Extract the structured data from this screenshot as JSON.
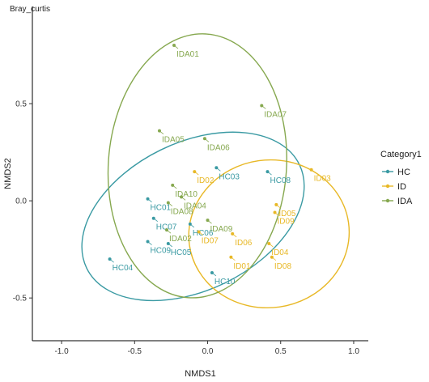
{
  "chart_data": {
    "type": "scatter",
    "title": "Bray_curtis",
    "xlabel": "NMDS1",
    "ylabel": "NMDS2",
    "xlim": [
      -1.2,
      1.1
    ],
    "ylim": [
      -0.72,
      1.0
    ],
    "x_ticks": [
      -1.0,
      -0.5,
      0.0,
      0.5,
      1.0
    ],
    "y_ticks": [
      -0.5,
      0.0,
      0.5
    ],
    "x_tick_labels": [
      "-1.0",
      "-0.5",
      "0.0",
      "0.5",
      "1.0"
    ],
    "y_tick_labels": [
      "-0.5",
      "0.0",
      "0.5"
    ],
    "grid": false,
    "legend": {
      "title": "Category1",
      "position": "right",
      "entries": [
        {
          "label": "HC",
          "color": "#3a9aa3"
        },
        {
          "label": "ID",
          "color": "#e8b826"
        },
        {
          "label": "IDA",
          "color": "#86a84f"
        }
      ]
    },
    "series": [
      {
        "name": "HC",
        "color": "#3a9aa3",
        "points": [
          {
            "label": "HC01",
            "x": -0.41,
            "y": 0.01
          },
          {
            "label": "HC03",
            "x": 0.06,
            "y": 0.17
          },
          {
            "label": "HC04",
            "x": -0.67,
            "y": -0.3
          },
          {
            "label": "HC05",
            "x": -0.27,
            "y": -0.22
          },
          {
            "label": "HC06",
            "x": -0.12,
            "y": -0.12
          },
          {
            "label": "HC07",
            "x": -0.37,
            "y": -0.09
          },
          {
            "label": "HC08",
            "x": 0.41,
            "y": 0.15
          },
          {
            "label": "HC09",
            "x": -0.41,
            "y": -0.21
          },
          {
            "label": "HC10",
            "x": 0.03,
            "y": -0.37
          }
        ],
        "ellipse": {
          "center": [
            -0.1,
            -0.08
          ],
          "rx": 0.81,
          "ry": 0.38,
          "angle_deg": 26
        }
      },
      {
        "name": "ID",
        "color": "#e8b826",
        "points": [
          {
            "label": "ID01",
            "x": 0.16,
            "y": -0.29
          },
          {
            "label": "ID02",
            "x": -0.09,
            "y": 0.15
          },
          {
            "label": "ID03",
            "x": 0.71,
            "y": 0.16
          },
          {
            "label": "ID04",
            "x": 0.42,
            "y": -0.22
          },
          {
            "label": "ID05",
            "x": 0.47,
            "y": -0.02
          },
          {
            "label": "ID06",
            "x": 0.17,
            "y": -0.17
          },
          {
            "label": "ID07",
            "x": -0.06,
            "y": -0.16
          },
          {
            "label": "ID08",
            "x": 0.44,
            "y": -0.29
          },
          {
            "label": "ID09",
            "x": 0.46,
            "y": -0.06
          }
        ],
        "ellipse": {
          "center": [
            0.42,
            -0.17
          ],
          "rx": 0.55,
          "ry": 0.38,
          "angle_deg": 8
        }
      },
      {
        "name": "IDA",
        "color": "#86a84f",
        "points": [
          {
            "label": "IDA01",
            "x": -0.23,
            "y": 0.8
          },
          {
            "label": "IDA02",
            "x": -0.28,
            "y": -0.15
          },
          {
            "label": "IDA04",
            "x": -0.18,
            "y": 0.02
          },
          {
            "label": "IDA05",
            "x": -0.33,
            "y": 0.36
          },
          {
            "label": "IDA06",
            "x": -0.02,
            "y": 0.32
          },
          {
            "label": "IDA07",
            "x": 0.37,
            "y": 0.49
          },
          {
            "label": "IDA08",
            "x": -0.27,
            "y": -0.01
          },
          {
            "label": "IDA09",
            "x": 0.0,
            "y": -0.1
          },
          {
            "label": "IDA10",
            "x": -0.24,
            "y": 0.08
          }
        ],
        "ellipse": {
          "center": [
            -0.07,
            0.18
          ],
          "rx": 0.61,
          "ry": 0.68,
          "angle_deg": -4
        }
      }
    ]
  }
}
